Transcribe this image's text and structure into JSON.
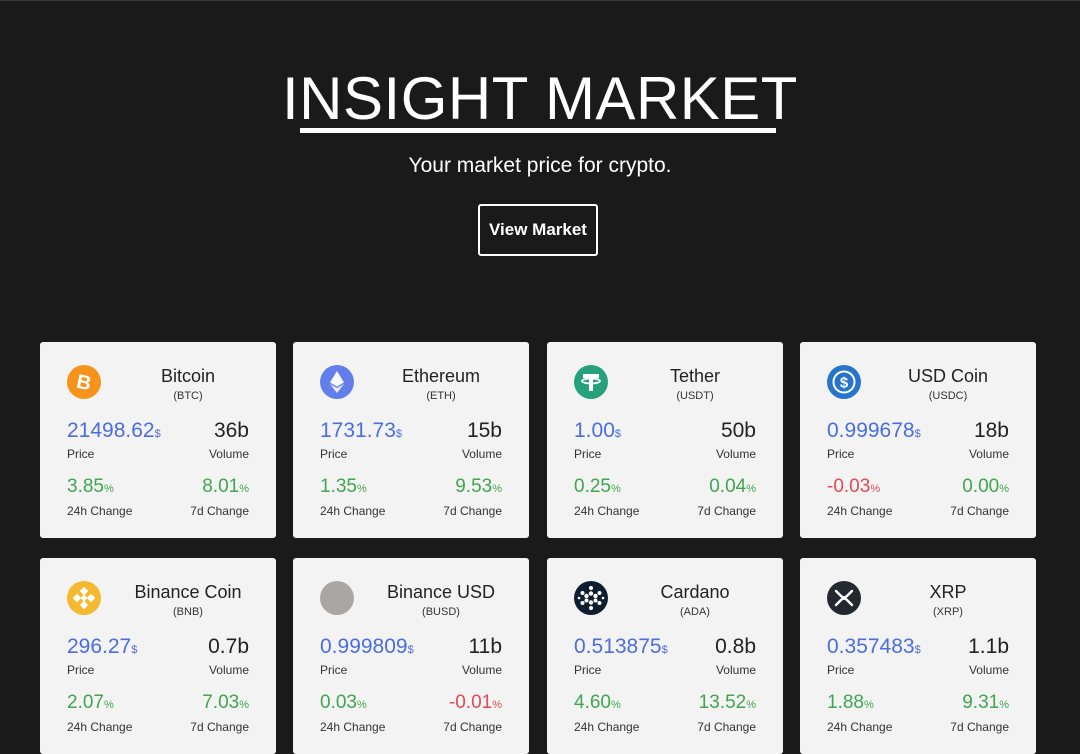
{
  "hero": {
    "title": "INSIGHT MARKET",
    "subtitle": "Your market price for crypto.",
    "button_label": "View Market"
  },
  "labels": {
    "price": "Price",
    "volume": "Volume",
    "change_24h": "24h Change",
    "change_7d": "7d Change"
  },
  "units": {
    "price": "$",
    "change": "%"
  },
  "colors": {
    "price": "#4a6ee0",
    "positive": "#3fa64e",
    "negative": "#e04a55",
    "background": "#1b1a1a",
    "card": "#f3f3f3"
  },
  "coins": [
    {
      "name": "Bitcoin",
      "symbol": "(BTC)",
      "price": "21498.62",
      "volume": "36b",
      "change_24h": "3.85",
      "change_7d": "8.01",
      "icon": "bitcoin-icon",
      "icon_color": "#f7931a"
    },
    {
      "name": "Ethereum",
      "symbol": "(ETH)",
      "price": "1731.73",
      "volume": "15b",
      "change_24h": "1.35",
      "change_7d": "9.53",
      "icon": "ethereum-icon",
      "icon_color": "#627eea"
    },
    {
      "name": "Tether",
      "symbol": "(USDT)",
      "price": "1.00",
      "volume": "50b",
      "change_24h": "0.25",
      "change_7d": "0.04",
      "icon": "tether-icon",
      "icon_color": "#26a17b"
    },
    {
      "name": "USD Coin",
      "symbol": "(USDC)",
      "price": "0.999678",
      "volume": "18b",
      "change_24h": "-0.03",
      "change_7d": "0.00",
      "icon": "usd-coin-icon",
      "icon_color": "#2775ca"
    },
    {
      "name": "Binance Coin",
      "symbol": "(BNB)",
      "price": "296.27",
      "volume": "0.7b",
      "change_24h": "2.07",
      "change_7d": "7.03",
      "icon": "binance-coin-icon",
      "icon_color": "#f3ba2f"
    },
    {
      "name": "Binance USD",
      "symbol": "(BUSD)",
      "price": "0.999809",
      "volume": "11b",
      "change_24h": "0.03",
      "change_7d": "-0.01",
      "icon": "binance-usd-icon",
      "icon_color": "#a9a6a3"
    },
    {
      "name": "Cardano",
      "symbol": "(ADA)",
      "price": "0.513875",
      "volume": "0.8b",
      "change_24h": "4.60",
      "change_7d": "13.52",
      "icon": "cardano-icon",
      "icon_color": "#0d1e30"
    },
    {
      "name": "XRP",
      "symbol": "(XRP)",
      "price": "0.357483",
      "volume": "1.1b",
      "change_24h": "1.88",
      "change_7d": "9.31",
      "icon": "xrp-icon",
      "icon_color": "#23292f"
    }
  ]
}
